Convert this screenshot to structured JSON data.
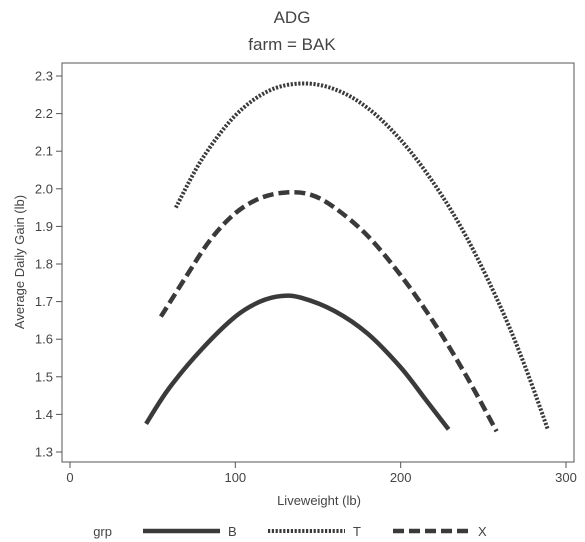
{
  "chart_data": {
    "type": "line",
    "title": "ADG",
    "subtitle": "farm = BAK",
    "xlabel": "Liveweight  (lb)",
    "ylabel": "Average  Daily  Gain  (lb)",
    "xlim": [
      0,
      300
    ],
    "ylim": [
      1.3,
      2.3
    ],
    "xticks": [
      0,
      100,
      200,
      300
    ],
    "yticks": [
      1.3,
      1.4,
      1.5,
      1.6,
      1.7,
      1.8,
      1.9,
      2.0,
      2.1,
      2.2,
      2.3
    ],
    "grid": false,
    "legend": {
      "title": "grp",
      "position": "bottom"
    },
    "series": [
      {
        "name": "B",
        "style": "solid",
        "x": [
          46,
          60,
          80,
          100,
          115,
          128,
          140,
          160,
          180,
          200,
          215,
          229
        ],
        "y": [
          1.375,
          1.47,
          1.575,
          1.66,
          1.7,
          1.715,
          1.71,
          1.675,
          1.615,
          1.525,
          1.44,
          1.36
        ]
      },
      {
        "name": "T",
        "style": "dotted",
        "x": [
          64,
          80,
          100,
          120,
          140,
          160,
          180,
          200,
          220,
          240,
          260,
          275,
          289
        ],
        "y": [
          1.95,
          2.08,
          2.195,
          2.26,
          2.28,
          2.265,
          2.215,
          2.13,
          2.015,
          1.87,
          1.69,
          1.53,
          1.36
        ]
      },
      {
        "name": "X",
        "style": "dashed",
        "x": [
          55,
          70,
          85,
          100,
          115,
          130,
          145,
          160,
          180,
          200,
          220,
          240,
          258
        ],
        "y": [
          1.66,
          1.765,
          1.865,
          1.935,
          1.975,
          1.99,
          1.985,
          1.95,
          1.875,
          1.77,
          1.645,
          1.5,
          1.355
        ]
      }
    ]
  }
}
